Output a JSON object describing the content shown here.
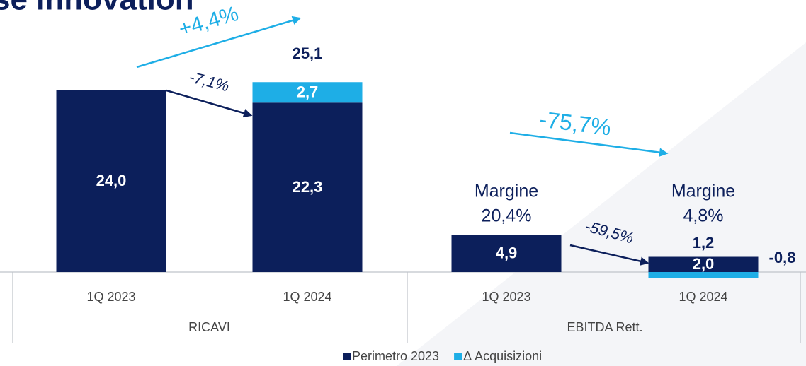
{
  "chart_data": {
    "type": "bar",
    "stacked": true,
    "title": "se Innovation",
    "categories": [
      "1Q 2023",
      "1Q 2024",
      "1Q 2023",
      "1Q 2024"
    ],
    "groups": [
      "RICAVI",
      "EBITDA Rett."
    ],
    "series": [
      {
        "name": "Perimetro 2023",
        "color": "#0c1f5b",
        "values": [
          24.0,
          22.3,
          4.9,
          2.0
        ],
        "value_labels": [
          "24,0",
          "22,3",
          "4,9",
          "2,0"
        ]
      },
      {
        "name": "Δ Acquisizioni",
        "color": "#1eaee6",
        "values": [
          null,
          2.7,
          null,
          -0.8
        ],
        "value_labels": [
          null,
          "2,7",
          null,
          "-0,8"
        ]
      }
    ],
    "totals": [
      null,
      25.1,
      null,
      1.2
    ],
    "total_labels": [
      null,
      "25,1",
      null,
      "1,2"
    ],
    "margins": [
      null,
      null,
      [
        "Margine",
        "20,4%"
      ],
      [
        "Margine",
        "4,8%"
      ]
    ],
    "annotations": [
      "+4,4%",
      "-7,1%",
      "-75,7%",
      "-59,5%"
    ],
    "legend": "bottom"
  }
}
